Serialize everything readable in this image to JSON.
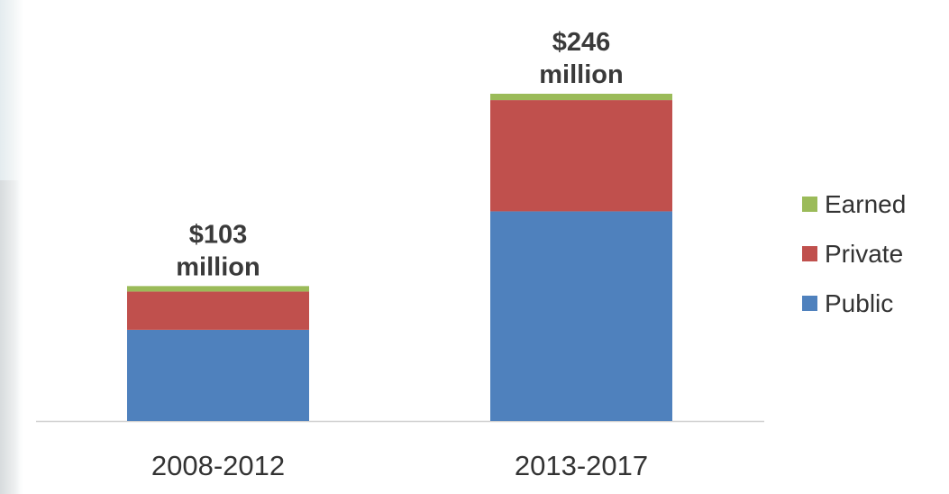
{
  "chart_data": {
    "type": "bar",
    "stacked": true,
    "categories": [
      "2008-2012",
      "2013-2017"
    ],
    "series": [
      {
        "name": "Public",
        "values": [
          50,
          115
        ],
        "color": "#4f81bd"
      },
      {
        "name": "Private",
        "values": [
          21,
          61
        ],
        "color": "#c0504d"
      },
      {
        "name": "Earned",
        "values": [
          3,
          3.5
        ],
        "color": "#9bbb59"
      }
    ],
    "total_labels": [
      [
        "$103",
        "million"
      ],
      [
        "$246",
        "million"
      ]
    ],
    "legend_order": [
      "Earned",
      "Private",
      "Public"
    ],
    "legend_position": "right",
    "ylim": [
      0,
      180
    ],
    "grid": false,
    "title": "",
    "xlabel": "",
    "ylabel": ""
  }
}
